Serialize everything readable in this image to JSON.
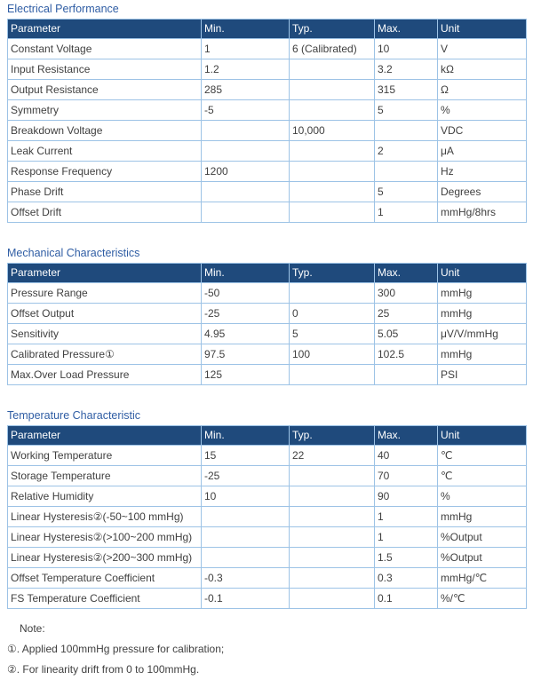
{
  "document": {
    "colors": {
      "header_bg": "#1f4a7c",
      "header_text": "#ffffff",
      "table_border": "#9dc3e6",
      "section_title_text": "#2f5da4",
      "body_text": "#404040"
    },
    "sections": [
      {
        "title": "Electrical Performance",
        "columns": [
          "Parameter",
          "Min.",
          "Typ.",
          "Max.",
          "Unit"
        ],
        "rows": [
          [
            "Constant Voltage",
            "1",
            "6 (Calibrated)",
            "10",
            "V"
          ],
          [
            "Input Resistance",
            "1.2",
            "",
            "3.2",
            "kΩ"
          ],
          [
            "Output Resistance",
            "285",
            "",
            "315",
            "Ω"
          ],
          [
            "Symmetry",
            "-5",
            "",
            "5",
            "%"
          ],
          [
            "Breakdown Voltage",
            "",
            "10,000",
            "",
            "VDC"
          ],
          [
            "Leak Current",
            "",
            "",
            "2",
            "μA"
          ],
          [
            "Response Frequency",
            "1200",
            "",
            "",
            "Hz"
          ],
          [
            "Phase Drift",
            "",
            "",
            "5",
            "Degrees"
          ],
          [
            "Offset Drift",
            "",
            "",
            "1",
            "mmHg/8hrs"
          ]
        ]
      },
      {
        "title": "Mechanical Characteristics",
        "columns": [
          "Parameter",
          "Min.",
          "Typ.",
          "Max.",
          "Unit"
        ],
        "rows": [
          [
            "Pressure Range",
            "-50",
            "",
            "300",
            "mmHg"
          ],
          [
            "Offset Output",
            "-25",
            "0",
            "25",
            "mmHg"
          ],
          [
            "Sensitivity",
            "4.95",
            "5",
            "5.05",
            "μV/V/mmHg"
          ],
          [
            "Calibrated Pressure①",
            "97.5",
            "100",
            "102.5",
            "mmHg"
          ],
          [
            "Max.Over Load Pressure",
            "125",
            "",
            "",
            "PSI"
          ]
        ]
      },
      {
        "title": "Temperature Characteristic",
        "columns": [
          "Parameter",
          "Min.",
          "Typ.",
          "Max.",
          "Unit"
        ],
        "rows": [
          [
            "Working Temperature",
            "15",
            "22",
            "40",
            "℃"
          ],
          [
            "Storage Temperature",
            "-25",
            "",
            "70",
            "℃"
          ],
          [
            "Relative Humidity",
            "10",
            "",
            "90",
            "%"
          ],
          [
            "Linear Hysteresis②(-50~100 mmHg)",
            "",
            "",
            "1",
            "mmHg"
          ],
          [
            "Linear Hysteresis②(>100~200 mmHg)",
            "",
            "",
            "1",
            "%Output"
          ],
          [
            "Linear Hysteresis②(>200~300 mmHg)",
            "",
            "",
            "1.5",
            "%Output"
          ],
          [
            "Offset Temperature Coefficient",
            "-0.3",
            "",
            "0.3",
            "mmHg/℃"
          ],
          [
            "FS Temperature Coefficient",
            "-0.1",
            "",
            "0.1",
            "%/℃"
          ]
        ]
      }
    ],
    "notes": {
      "label": "Note:",
      "items": [
        "①. Applied 100mmHg pressure for calibration;",
        "②. For linearity drift from 0 to 100mmHg."
      ]
    }
  }
}
